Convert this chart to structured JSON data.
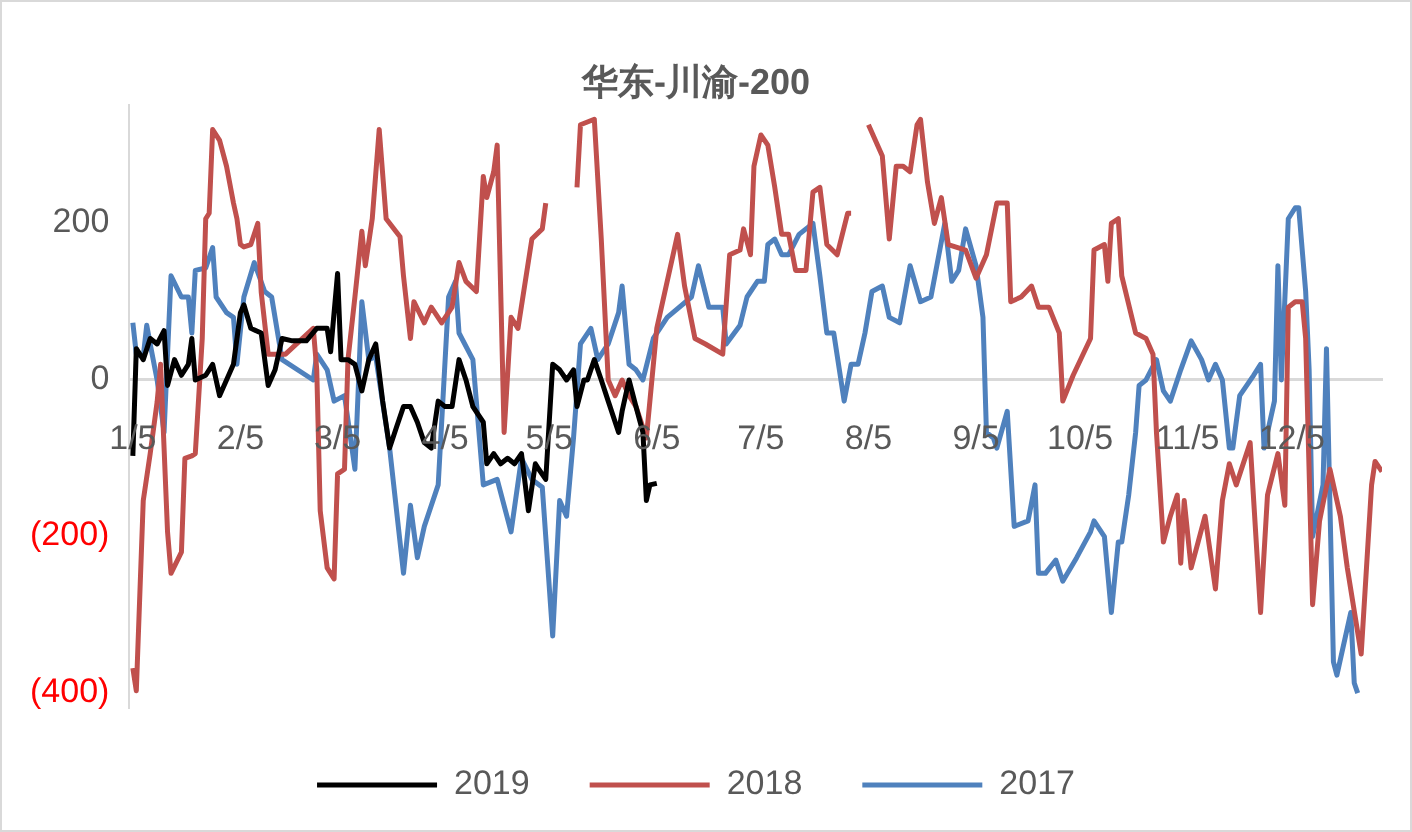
{
  "chart_data": {
    "type": "line",
    "title": "华东-川渝-200",
    "xlim": [
      "--01-04",
      "--12-31"
    ],
    "ylim": [
      -420,
      350
    ],
    "xticks": [
      {
        "value": "--01-05",
        "label": "1/5"
      },
      {
        "value": "--02-05",
        "label": "2/5"
      },
      {
        "value": "--03-05",
        "label": "3/5"
      },
      {
        "value": "--04-05",
        "label": "4/5"
      },
      {
        "value": "--05-05",
        "label": "5/5"
      },
      {
        "value": "--06-05",
        "label": "6/5"
      },
      {
        "value": "--07-05",
        "label": "7/5"
      },
      {
        "value": "--08-05",
        "label": "8/5"
      },
      {
        "value": "--09-05",
        "label": "9/5"
      },
      {
        "value": "--10-05",
        "label": "10/5"
      },
      {
        "value": "--11-05",
        "label": "11/5"
      },
      {
        "value": "--12-05",
        "label": "12/5"
      }
    ],
    "yticks": [
      200,
      0,
      {
        "value": -200,
        "label": "(200)"
      },
      {
        "value": -400,
        "label": "(400)"
      }
    ],
    "legend": "bottom",
    "series": [
      {
        "name": "2019",
        "color": "#000000",
        "x": [
          "--01-05",
          "--01-06",
          "--01-08",
          "--01-10",
          "--01-12",
          "--01-14",
          "--01-15",
          "--01-17",
          "--01-19",
          "--01-21",
          "--01-22",
          "--01-23",
          "--01-26",
          "--01-28",
          "--01-30",
          "--02-01",
          "--02-03",
          "--02-05",
          "--02-06",
          "--02-08",
          "--02-11",
          "--02-13",
          "--02-15",
          "--02-17",
          "--02-20",
          "--02-24",
          "--02-27",
          "--03-02",
          "--03-03",
          "--03-05",
          "--03-06",
          "--03-08",
          "--03-10",
          "--03-12",
          "--03-14",
          "--03-16",
          "--03-18",
          "--03-20",
          "--03-22",
          "--03-24",
          "--03-26",
          "--03-28",
          "--03-30",
          "--04-01",
          "--04-03",
          "--04-05",
          "--04-07",
          "--04-09",
          "--04-11",
          "--04-13",
          "--04-16",
          "--04-17",
          "--04-19",
          "--04-21",
          "--04-23",
          "--04-25",
          "--04-27",
          "--04-29",
          "--05-01",
          "--05-02",
          "--05-04",
          "--05-06",
          "--05-08",
          "--05-10",
          "--05-12",
          "--05-13",
          "--05-15",
          "--05-16",
          "--05-18",
          "--05-20",
          "--05-22",
          "--05-25",
          "--05-26",
          "--05-28",
          "--05-30",
          "--06-01",
          "--06-02",
          "--06-03",
          "--06-05"
        ],
        "values": [
          -98,
          39,
          25,
          52,
          45,
          62,
          -8,
          25,
          5,
          19,
          52,
          -1,
          5,
          19,
          -21,
          -1,
          19,
          85,
          95,
          65,
          59,
          -8,
          12,
          52,
          49,
          49,
          65,
          65,
          35,
          135,
          25,
          25,
          19,
          -15,
          25,
          45,
          -28,
          -88,
          -61,
          -35,
          -35,
          -55,
          -81,
          -88,
          -28,
          -35,
          -35,
          25,
          -1,
          -35,
          -55,
          -108,
          -95,
          -108,
          -101,
          -108,
          -95,
          -168,
          -108,
          -115,
          -128,
          19,
          12,
          -1,
          12,
          -35,
          -1,
          -1,
          25,
          -1,
          -28,
          -68,
          -41,
          -1,
          -35,
          -68,
          -155,
          -135,
          -133
        ]
      },
      {
        "name": "2018",
        "color": "#c0504d",
        "x": [
          "--01-05",
          "--01-06",
          "--01-08",
          "--01-10",
          "--01-12",
          "--01-13",
          "--01-15",
          "--01-16",
          "--01-19",
          "--01-20",
          "--01-22",
          "--01-23",
          "--01-25",
          "--01-26",
          "--01-27",
          "--01-28",
          "--01-30",
          "--02-01",
          "--02-03",
          "--02-04",
          "--02-05",
          "--02-06",
          "--02-08",
          "--02-10",
          "--02-11",
          "--02-13",
          "--02-14",
          "--02-18",
          "--02-26",
          "--02-27",
          "--02-28",
          "--03-02",
          "--03-04",
          "--03-05",
          "--03-07",
          "--03-08",
          "--03-10",
          "--03-12",
          "--03-13",
          "--03-15",
          "--03-17",
          "--03-19",
          "--03-23",
          "--03-24",
          "--03-26",
          "--03-27",
          "--03-30",
          "--04-01",
          "--04-04",
          "--04-07",
          "--04-09",
          "--04-11",
          "--04-14",
          "--04-16",
          "--04-17",
          "--04-19",
          "--04-20",
          "--04-22",
          "--04-24",
          "--04-26",
          "--04-30",
          "--05-03",
          "--05-04",
          "--05-06",
          "--05-10",
          "--05-13",
          "--05-14",
          "--05-18",
          "--05-20",
          "--05-22",
          "--05-24",
          "--05-26",
          "--05-28",
          "--05-30",
          "--06-02",
          "--06-05",
          "--06-11",
          "--06-13",
          "--06-16",
          "--06-19",
          "--06-24",
          "--06-26",
          "--06-29",
          "--06-30",
          "--07-02",
          "--07-03",
          "--07-05",
          "--07-07",
          "--07-09",
          "--07-11",
          "--07-13",
          "--07-15",
          "--07-18",
          "--07-20",
          "--07-22",
          "--07-24",
          "--07-27",
          "--07-30",
          "--07-31",
          "--08-03",
          "--08-05",
          "--08-09",
          "--08-11",
          "--08-13",
          "--08-15",
          "--08-17",
          "--08-19",
          "--08-20",
          "--08-22",
          "--08-24",
          "--08-26",
          "--08-28",
          "--09-02",
          "--09-05",
          "--09-08",
          "--09-11",
          "--09-14",
          "--09-15",
          "--09-18",
          "--09-21",
          "--09-23",
          "--09-26",
          "--09-29",
          "--09-30",
          "--10-03",
          "--10-08",
          "--10-09",
          "--10-12",
          "--10-13",
          "--10-14",
          "--10-16",
          "--10-17",
          "--10-21",
          "--10-24",
          "--10-26",
          "--10-27",
          "--10-29",
          "--10-31",
          "--11-02",
          "--11-03",
          "--11-04",
          "--11-06",
          "--11-08",
          "--11-10",
          "--11-13",
          "--11-15",
          "--11-17",
          "--11-19",
          "--11-23",
          "--11-26",
          "--11-28",
          "--12-01",
          "--12-03",
          "--12-04",
          "--12-06",
          "--12-08",
          "--12-09",
          "--12-11",
          "--12-13",
          "--12-16",
          "--12-19",
          "--12-21",
          "--12-25",
          "--12-28",
          "--12-29",
          "--12-31"
        ],
        "values": [
          -369,
          -398,
          -155,
          -95,
          -29,
          19,
          -195,
          -248,
          -221,
          -101,
          -98,
          -95,
          52,
          205,
          212,
          319,
          305,
          272,
          225,
          205,
          172,
          169,
          172,
          199,
          111,
          32,
          32,
          32,
          65,
          12,
          -168,
          -241,
          -255,
          -121,
          -115,
          25,
          105,
          189,
          145,
          205,
          319,
          205,
          182,
          132,
          52,
          99,
          72,
          92,
          72,
          92,
          149,
          125,
          112,
          259,
          232,
          265,
          299,
          -68,
          79,
          65,
          179,
          192,
          225,
          null,
          null,
          245,
          325,
          332,
          179,
          -1,
          -21,
          -1,
          -21,
          -35,
          -75,
          65,
          185,
          119,
          52,
          45,
          32,
          159,
          165,
          192,
          159,
          272,
          312,
          299,
          245,
          185,
          185,
          139,
          139,
          239,
          245,
          172,
          159,
          212,
          212,
          null,
          325,
          285,
          179,
          272,
          272,
          265,
          325,
          332,
          252,
          199,
          232,
          172,
          165,
          129,
          159,
          225,
          225,
          99,
          105,
          119,
          92,
          92,
          59,
          -28,
          5,
          52,
          165,
          172,
          125,
          199,
          205,
          132,
          59,
          52,
          32,
          -68,
          -208,
          -175,
          -148,
          -235,
          -155,
          -241,
          -208,
          -175,
          -268,
          -155,
          -108,
          -135,
          -81,
          -298,
          -148,
          -95,
          -161,
          92,
          99,
          99,
          52,
          -288,
          -181,
          -115,
          -175,
          -241,
          -351,
          -135,
          -105,
          -118
        ]
      },
      {
        "name": "2017",
        "color": "#4f81bd",
        "x": [
          "--01-05",
          "--01-06",
          "--01-08",
          "--01-09",
          "--01-10",
          "--01-12",
          "--01-14",
          "--01-16",
          "--01-19",
          "--01-21",
          "--01-22",
          "--01-23",
          "--01-26",
          "--01-28",
          "--01-29",
          "--02-01",
          "--02-03",
          "--02-04",
          "--02-06",
          "--02-09",
          "--02-12",
          "--02-14",
          "--02-17",
          "--02-26",
          "--02-27",
          "--03-02",
          "--03-04",
          "--03-07",
          "--03-10",
          "--03-12",
          "--03-14",
          "--03-16",
          "--03-17",
          "--03-20",
          "--03-24",
          "--03-26",
          "--03-28",
          "--03-30",
          "--04-03",
          "--04-06",
          "--04-08",
          "--04-09",
          "--04-13",
          "--04-16",
          "--04-20",
          "--04-24",
          "--04-27",
          "--04-30",
          "--05-03",
          "--05-06",
          "--05-08",
          "--05-10",
          "--05-12",
          "--05-14",
          "--05-17",
          "--05-19",
          "--05-22",
          "--05-25",
          "--05-26",
          "--05-28",
          "--05-30",
          "--06-01",
          "--06-04",
          "--06-08",
          "--06-15",
          "--06-17",
          "--06-20",
          "--06-24",
          "--06-25",
          "--06-29",
          "--07-01",
          "--07-04",
          "--07-06",
          "--07-07",
          "--07-09",
          "--07-11",
          "--07-13",
          "--07-16",
          "--07-20",
          "--07-22",
          "--07-24",
          "--07-26",
          "--07-29",
          "--07-31",
          "--08-02",
          "--08-04",
          "--08-06",
          "--08-09",
          "--08-11",
          "--08-14",
          "--08-17",
          "--08-20",
          "--08-23",
          "--08-27",
          "--08-29",
          "--08-31",
          "--09-02",
          "--09-05",
          "--09-07",
          "--09-08",
          "--09-10",
          "--09-11",
          "--09-14",
          "--09-16",
          "--09-20",
          "--09-22",
          "--09-23",
          "--09-25",
          "--09-28",
          "--09-30",
          "--10-04",
          "--10-08",
          "--10-09",
          "--10-12",
          "--10-14",
          "--10-16",
          "--10-17",
          "--10-19",
          "--10-21",
          "--10-22",
          "--10-24",
          "--10-27",
          "--10-29",
          "--10-31",
          "--11-03",
          "--11-06",
          "--11-09",
          "--11-11",
          "--11-13",
          "--11-15",
          "--11-17",
          "--11-18",
          "--11-20",
          "--11-24",
          "--11-26",
          "--11-27",
          "--11-30",
          "--12-01",
          "--12-02",
          "--12-04",
          "--12-06",
          "--12-07",
          "--12-09",
          "--12-10",
          "--12-11",
          "--12-14",
          "--12-15",
          "--12-17",
          "--12-18",
          "--12-22",
          "--12-23",
          "--12-24"
        ],
        "values": [
          72,
          32,
          29,
          69,
          45,
          -1,
          -68,
          132,
          105,
          105,
          59,
          139,
          142,
          168,
          105,
          85,
          79,
          19,
          105,
          149,
          112,
          105,
          25,
          -1,
          32,
          12,
          -28,
          -21,
          -115,
          99,
          25,
          29,
          -1,
          -88,
          -248,
          -161,
          -228,
          -188,
          -135,
          105,
          125,
          59,
          25,
          -135,
          -128,
          -195,
          -101,
          -128,
          -138,
          -328,
          -155,
          -175,
          -75,
          45,
          65,
          25,
          45,
          85,
          119,
          19,
          12,
          -1,
          52,
          79,
          105,
          145,
          92,
          92,
          45,
          69,
          105,
          125,
          125,
          172,
          179,
          159,
          159,
          185,
          199,
          132,
          59,
          59,
          -28,
          19,
          19,
          59,
          112,
          119,
          79,
          72,
          145,
          99,
          105,
          199,
          125,
          139,
          192,
          145,
          79,
          -68,
          -75,
          -88,
          -41,
          -188,
          -181,
          -135,
          -248,
          -248,
          -231,
          -258,
          -228,
          -195,
          -181,
          -201,
          -298,
          -208,
          -208,
          -148,
          -68,
          -8,
          -1,
          25,
          -15,
          -28,
          12,
          49,
          25,
          -1,
          19,
          -1,
          -88,
          -88,
          -21,
          5,
          19,
          -88,
          -28,
          145,
          -1,
          205,
          219,
          219,
          112,
          12,
          -201,
          -135,
          39,
          -361,
          -378,
          -298,
          -388,
          -401
        ]
      }
    ]
  }
}
